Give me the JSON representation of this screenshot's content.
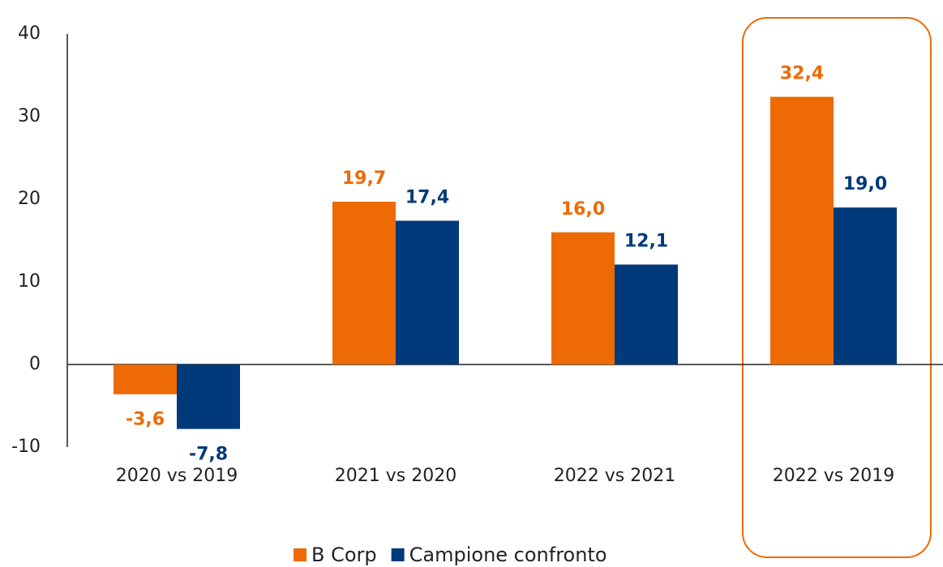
{
  "chart_data": {
    "type": "bar",
    "categories": [
      "2020 vs 2019",
      "2021 vs 2020",
      "2022 vs 2021",
      "2022 vs 2019"
    ],
    "series": [
      {
        "name": "B Corp",
        "color": "#ed6a04",
        "values": [
          -3.6,
          19.7,
          16.0,
          32.4
        ],
        "value_labels": [
          "-3,6",
          "19,7",
          "16,0",
          "32,4"
        ]
      },
      {
        "name": "Campione confronto",
        "color": "#003a7a",
        "values": [
          -7.8,
          17.4,
          12.1,
          19.0
        ],
        "value_labels": [
          "-7,8",
          "17,4",
          "12,1",
          "19,0"
        ]
      }
    ],
    "ylim": [
      -10,
      40
    ],
    "yticks": [
      -10,
      0,
      10,
      20,
      30,
      40
    ],
    "grid": false,
    "legend": "bottom"
  }
}
